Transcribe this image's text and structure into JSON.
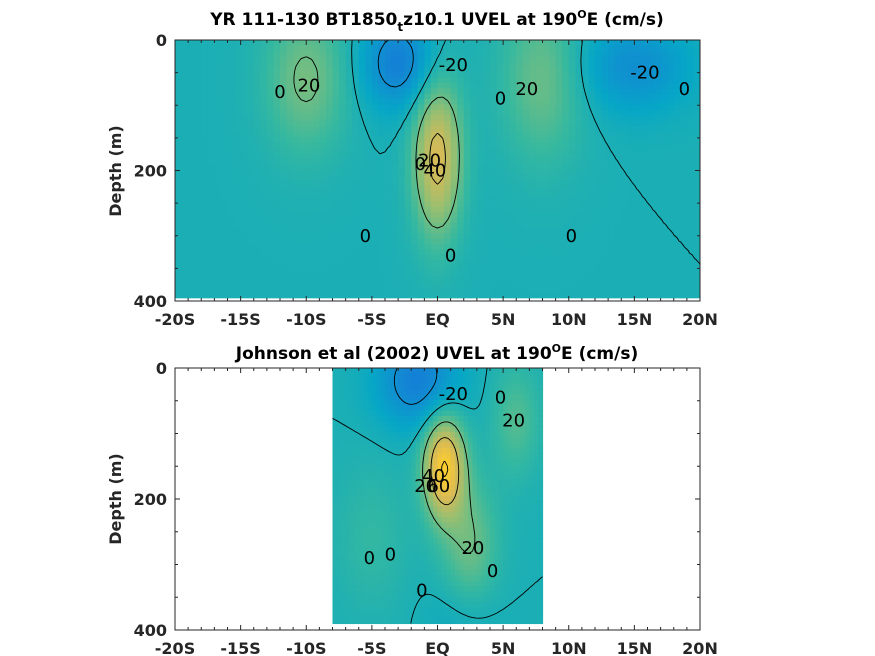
{
  "chart_data": [
    {
      "type": "heatmap",
      "variable": "UVEL",
      "units": "cm/s",
      "title_pre": "YR 111-130 BT1850",
      "title_sub": "t",
      "title_mid": "z10.1 UVEL at 190",
      "title_sup": "O",
      "title_post": "E (cm/s)",
      "ylabel": "Depth (m)",
      "xlim": [
        -20,
        20
      ],
      "ylim": [
        0,
        400
      ],
      "x_ticks": [
        -20,
        -15,
        -10,
        -5,
        0,
        5,
        10,
        15,
        20
      ],
      "x_tick_labels": [
        "-20S",
        "-15S",
        "-10S",
        "-5S",
        "EQ",
        "5N",
        "10N",
        "15N",
        "20N"
      ],
      "y_ticks": [
        0,
        200,
        400
      ],
      "y_tick_labels": [
        "0",
        "200",
        "400"
      ],
      "data_extent_x": [
        -20,
        20
      ],
      "data_extent_y": [
        0,
        395
      ],
      "features": [
        {
          "kind": "max",
          "lat": 0,
          "depth": 180,
          "value": 45,
          "sx": 1.3,
          "sy": 85
        },
        {
          "kind": "max",
          "lat": -10,
          "depth": 60,
          "value": 22,
          "sx": 2.2,
          "sy": 80
        },
        {
          "kind": "max",
          "lat": 8,
          "depth": 60,
          "value": 20,
          "sx": 2.2,
          "sy": 90
        },
        {
          "kind": "min",
          "lat": -3,
          "depth": 35,
          "value": -28,
          "sx": 2.0,
          "sy": 50
        },
        {
          "kind": "min",
          "lat": 15,
          "depth": 40,
          "value": -20,
          "sx": 3.0,
          "sy": 50
        }
      ],
      "contour_labels": [
        {
          "text": "20",
          "lat": -9.8,
          "depth": 70
        },
        {
          "text": "0",
          "lat": -12,
          "depth": 80
        },
        {
          "text": "-20",
          "lat": 1.2,
          "depth": 38
        },
        {
          "text": "0",
          "lat": 4.8,
          "depth": 90
        },
        {
          "text": "20",
          "lat": 6.8,
          "depth": 75
        },
        {
          "text": "-20",
          "lat": 15.8,
          "depth": 50
        },
        {
          "text": "0",
          "lat": 18.8,
          "depth": 75
        },
        {
          "text": "0",
          "lat": -1.3,
          "depth": 190
        },
        {
          "text": "20",
          "lat": -0.6,
          "depth": 185
        },
        {
          "text": "40",
          "lat": -0.2,
          "depth": 200
        },
        {
          "text": "0",
          "lat": -5.5,
          "depth": 300
        },
        {
          "text": "0",
          "lat": 1.0,
          "depth": 330
        },
        {
          "text": "0",
          "lat": 10.2,
          "depth": 300
        }
      ]
    },
    {
      "type": "heatmap",
      "variable": "UVEL",
      "units": "cm/s",
      "title_pre": "Johnson et al (2002) UVEL at 190",
      "title_sub": "",
      "title_mid": "",
      "title_sup": "O",
      "title_post": "E (cm/s)",
      "ylabel": "Depth (m)",
      "xlim": [
        -20,
        20
      ],
      "ylim": [
        0,
        400
      ],
      "x_ticks": [
        -20,
        -15,
        -10,
        -5,
        0,
        5,
        10,
        15,
        20
      ],
      "x_tick_labels": [
        "-20S",
        "-15S",
        "-10S",
        "-5S",
        "EQ",
        "5N",
        "10N",
        "15N",
        "20N"
      ],
      "y_ticks": [
        0,
        200,
        400
      ],
      "y_tick_labels": [
        "0",
        "200",
        "400"
      ],
      "data_extent_x": [
        -8,
        8
      ],
      "data_extent_y": [
        0,
        390
      ],
      "features": [
        {
          "kind": "max",
          "lat": 0.5,
          "depth": 150,
          "value": 60,
          "sx": 1.1,
          "sy": 55
        },
        {
          "kind": "max",
          "lat": 2.5,
          "depth": 270,
          "value": 20,
          "sx": 1.5,
          "sy": 70
        },
        {
          "kind": "max",
          "lat": -5,
          "depth": 260,
          "value": 8,
          "sx": 2.0,
          "sy": 80
        },
        {
          "kind": "max",
          "lat": 6,
          "depth": 80,
          "value": 15,
          "sx": 1.3,
          "sy": 60
        },
        {
          "kind": "min",
          "lat": -1.5,
          "depth": 20,
          "value": -28,
          "sx": 2.2,
          "sy": 50
        },
        {
          "kind": "min",
          "lat": 2,
          "depth": 380,
          "value": -6,
          "sx": 2.0,
          "sy": 40
        }
      ],
      "contour_labels": [
        {
          "text": "-20",
          "lat": 1.2,
          "depth": 40
        },
        {
          "text": "0",
          "lat": 4.8,
          "depth": 45
        },
        {
          "text": "20",
          "lat": 5.8,
          "depth": 80
        },
        {
          "text": "20",
          "lat": -0.9,
          "depth": 180
        },
        {
          "text": "40",
          "lat": -0.3,
          "depth": 165
        },
        {
          "text": "60",
          "lat": 0.1,
          "depth": 180
        },
        {
          "text": "0",
          "lat": -5.2,
          "depth": 290
        },
        {
          "text": "0",
          "lat": -3.6,
          "depth": 285
        },
        {
          "text": "20",
          "lat": 2.7,
          "depth": 275
        },
        {
          "text": "0",
          "lat": 4.2,
          "depth": 310
        },
        {
          "text": "0",
          "lat": -1.2,
          "depth": 340
        }
      ]
    }
  ]
}
